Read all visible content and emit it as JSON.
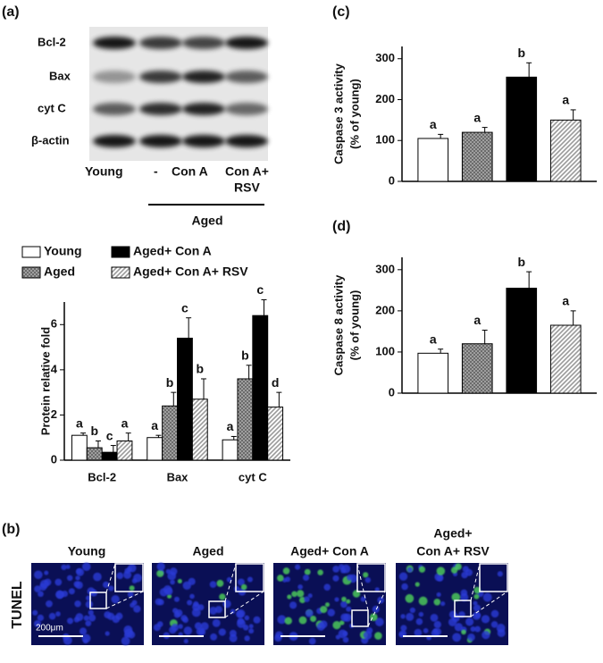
{
  "panel_labels": [
    "(a)",
    "(b)",
    "(c)",
    "(d)"
  ],
  "blot": {
    "proteins": [
      "Bcl-2",
      "Bax",
      "cyt C",
      "β-actin"
    ],
    "lanes": [
      "Young",
      "-",
      "Con A",
      "Con A+",
      "RSV"
    ],
    "group": "Aged"
  },
  "tunel": {
    "stain": "TUNEL",
    "scale": "200μm",
    "groups": [
      "Young",
      "Aged",
      "Aged+ Con A",
      "Aged+",
      "Con A+ RSV"
    ]
  },
  "chart_data": [
    {
      "type": "bar",
      "y_label": "Protein relative fold",
      "categories": [
        "Bcl-2",
        "Bax",
        "cyt C"
      ],
      "ylim": [
        0,
        7
      ],
      "yticks": [
        0,
        2,
        4,
        6
      ],
      "series": [
        {
          "name": "Young",
          "color": "#ffffff",
          "fill": "solid",
          "values": [
            1.1,
            1.0,
            0.9
          ],
          "errors": [
            0.1,
            0.1,
            0.15
          ],
          "letters": [
            "a",
            "a",
            "a"
          ]
        },
        {
          "name": "Aged",
          "color": "#6b6b6b",
          "fill": "dots",
          "values": [
            0.55,
            2.4,
            3.6
          ],
          "errors": [
            0.3,
            0.6,
            0.6
          ],
          "letters": [
            "b",
            "b",
            "b"
          ]
        },
        {
          "name": "Aged+ Con A",
          "color": "#000000",
          "fill": "solid",
          "values": [
            0.35,
            5.4,
            6.4
          ],
          "errors": [
            0.3,
            0.9,
            0.7
          ],
          "letters": [
            "c",
            "c",
            "c"
          ]
        },
        {
          "name": "Aged+ Con A+ RSV",
          "color": "#9a9a9a",
          "fill": "hatch",
          "values": [
            0.85,
            2.7,
            2.35
          ],
          "errors": [
            0.35,
            0.9,
            0.65
          ],
          "letters": [
            "a",
            "b",
            "d"
          ]
        }
      ]
    },
    {
      "type": "bar",
      "y_label": [
        "Caspase 3 activity",
        "(% of young)"
      ],
      "ylim": [
        0,
        330
      ],
      "yticks": [
        0,
        100,
        200,
        300
      ],
      "colors": [
        "#ffffff",
        "#6b6b6b",
        "#000000",
        "#9a9a9a"
      ],
      "fills": [
        "solid",
        "dots",
        "solid",
        "hatch"
      ],
      "values": [
        105,
        120,
        255,
        150
      ],
      "errors": [
        10,
        12,
        35,
        25
      ],
      "letters": [
        "a",
        "a",
        "b",
        "a"
      ]
    },
    {
      "type": "bar",
      "y_label": [
        "Caspase 8 activity",
        "(% of young)"
      ],
      "ylim": [
        0,
        330
      ],
      "yticks": [
        0,
        100,
        200,
        300
      ],
      "colors": [
        "#ffffff",
        "#6b6b6b",
        "#000000",
        "#9a9a9a"
      ],
      "fills": [
        "solid",
        "dots",
        "solid",
        "hatch"
      ],
      "values": [
        97,
        120,
        255,
        165
      ],
      "errors": [
        10,
        33,
        40,
        35
      ],
      "letters": [
        "a",
        "a",
        "b",
        "a"
      ]
    }
  ]
}
